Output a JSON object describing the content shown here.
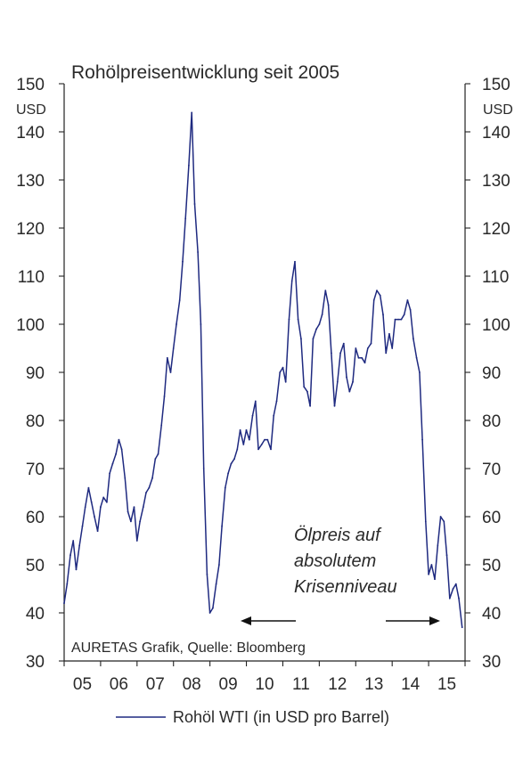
{
  "chart_data": {
    "type": "line",
    "title": "Rohölpreisentwicklung seit 2005",
    "left_unit": "USD",
    "right_unit": "USD",
    "ylim": [
      30,
      150
    ],
    "y_ticks": [
      "150",
      "140",
      "130",
      "120",
      "110",
      "100",
      "90",
      "80",
      "70",
      "60",
      "50",
      "40",
      "30"
    ],
    "x_ticks": [
      "05",
      "06",
      "07",
      "08",
      "09",
      "10",
      "11",
      "12",
      "13",
      "14",
      "15"
    ],
    "xlim": [
      2005.0,
      2016.0
    ],
    "source": "AURETAS Grafik, Quelle: Bloomberg",
    "annotation": [
      "Ölpreis auf",
      "absolutem",
      "Krisenniveau"
    ],
    "legend_label": "Rohöl WTI (in USD pro Barrel)",
    "grid": false,
    "line_color": "#1f2a80",
    "series": [
      {
        "name": "Rohöl WTI (in USD pro Barrel)",
        "points": [
          [
            2005.0,
            42
          ],
          [
            2005.08,
            46
          ],
          [
            2005.17,
            52
          ],
          [
            2005.25,
            55
          ],
          [
            2005.33,
            49
          ],
          [
            2005.42,
            54
          ],
          [
            2005.5,
            58
          ],
          [
            2005.58,
            62
          ],
          [
            2005.67,
            66
          ],
          [
            2005.75,
            63
          ],
          [
            2005.83,
            60
          ],
          [
            2005.92,
            57
          ],
          [
            2006.0,
            62
          ],
          [
            2006.08,
            64
          ],
          [
            2006.17,
            63
          ],
          [
            2006.25,
            69
          ],
          [
            2006.33,
            71
          ],
          [
            2006.42,
            73
          ],
          [
            2006.5,
            76
          ],
          [
            2006.58,
            74
          ],
          [
            2006.67,
            68
          ],
          [
            2006.75,
            61
          ],
          [
            2006.83,
            59
          ],
          [
            2006.92,
            62
          ],
          [
            2007.0,
            55
          ],
          [
            2007.08,
            59
          ],
          [
            2007.17,
            62
          ],
          [
            2007.25,
            65
          ],
          [
            2007.33,
            66
          ],
          [
            2007.42,
            68
          ],
          [
            2007.5,
            72
          ],
          [
            2007.58,
            73
          ],
          [
            2007.67,
            79
          ],
          [
            2007.75,
            85
          ],
          [
            2007.83,
            93
          ],
          [
            2007.92,
            90
          ],
          [
            2008.0,
            95
          ],
          [
            2008.08,
            100
          ],
          [
            2008.17,
            105
          ],
          [
            2008.25,
            113
          ],
          [
            2008.33,
            122
          ],
          [
            2008.42,
            133
          ],
          [
            2008.5,
            144
          ],
          [
            2008.58,
            125
          ],
          [
            2008.67,
            115
          ],
          [
            2008.75,
            100
          ],
          [
            2008.83,
            70
          ],
          [
            2008.92,
            48
          ],
          [
            2009.0,
            40
          ],
          [
            2009.08,
            41
          ],
          [
            2009.17,
            46
          ],
          [
            2009.25,
            50
          ],
          [
            2009.33,
            58
          ],
          [
            2009.42,
            66
          ],
          [
            2009.5,
            69
          ],
          [
            2009.58,
            71
          ],
          [
            2009.67,
            72
          ],
          [
            2009.75,
            74
          ],
          [
            2009.83,
            78
          ],
          [
            2009.92,
            75
          ],
          [
            2010.0,
            78
          ],
          [
            2010.08,
            76
          ],
          [
            2010.17,
            81
          ],
          [
            2010.25,
            84
          ],
          [
            2010.33,
            74
          ],
          [
            2010.42,
            75
          ],
          [
            2010.5,
            76
          ],
          [
            2010.58,
            76
          ],
          [
            2010.67,
            74
          ],
          [
            2010.75,
            81
          ],
          [
            2010.83,
            84
          ],
          [
            2010.92,
            90
          ],
          [
            2011.0,
            91
          ],
          [
            2011.08,
            88
          ],
          [
            2011.17,
            101
          ],
          [
            2011.25,
            109
          ],
          [
            2011.33,
            113
          ],
          [
            2011.42,
            101
          ],
          [
            2011.5,
            97
          ],
          [
            2011.58,
            87
          ],
          [
            2011.67,
            86
          ],
          [
            2011.75,
            83
          ],
          [
            2011.83,
            97
          ],
          [
            2011.92,
            99
          ],
          [
            2012.0,
            100
          ],
          [
            2012.08,
            102
          ],
          [
            2012.17,
            107
          ],
          [
            2012.25,
            104
          ],
          [
            2012.33,
            94
          ],
          [
            2012.42,
            83
          ],
          [
            2012.5,
            88
          ],
          [
            2012.58,
            94
          ],
          [
            2012.67,
            96
          ],
          [
            2012.75,
            89
          ],
          [
            2012.83,
            86
          ],
          [
            2012.92,
            88
          ],
          [
            2013.0,
            95
          ],
          [
            2013.08,
            93
          ],
          [
            2013.17,
            93
          ],
          [
            2013.25,
            92
          ],
          [
            2013.33,
            95
          ],
          [
            2013.42,
            96
          ],
          [
            2013.5,
            105
          ],
          [
            2013.58,
            107
          ],
          [
            2013.67,
            106
          ],
          [
            2013.75,
            102
          ],
          [
            2013.83,
            94
          ],
          [
            2013.92,
            98
          ],
          [
            2014.0,
            95
          ],
          [
            2014.08,
            101
          ],
          [
            2014.17,
            101
          ],
          [
            2014.25,
            101
          ],
          [
            2014.33,
            102
          ],
          [
            2014.42,
            105
          ],
          [
            2014.5,
            103
          ],
          [
            2014.58,
            97
          ],
          [
            2014.67,
            93
          ],
          [
            2014.75,
            90
          ],
          [
            2014.83,
            76
          ],
          [
            2014.92,
            59
          ],
          [
            2015.0,
            48
          ],
          [
            2015.08,
            50
          ],
          [
            2015.17,
            47
          ],
          [
            2015.25,
            54
          ],
          [
            2015.33,
            60
          ],
          [
            2015.42,
            59
          ],
          [
            2015.5,
            52
          ],
          [
            2015.58,
            43
          ],
          [
            2015.67,
            45
          ],
          [
            2015.75,
            46
          ],
          [
            2015.83,
            43
          ],
          [
            2015.92,
            37
          ]
        ]
      }
    ]
  }
}
